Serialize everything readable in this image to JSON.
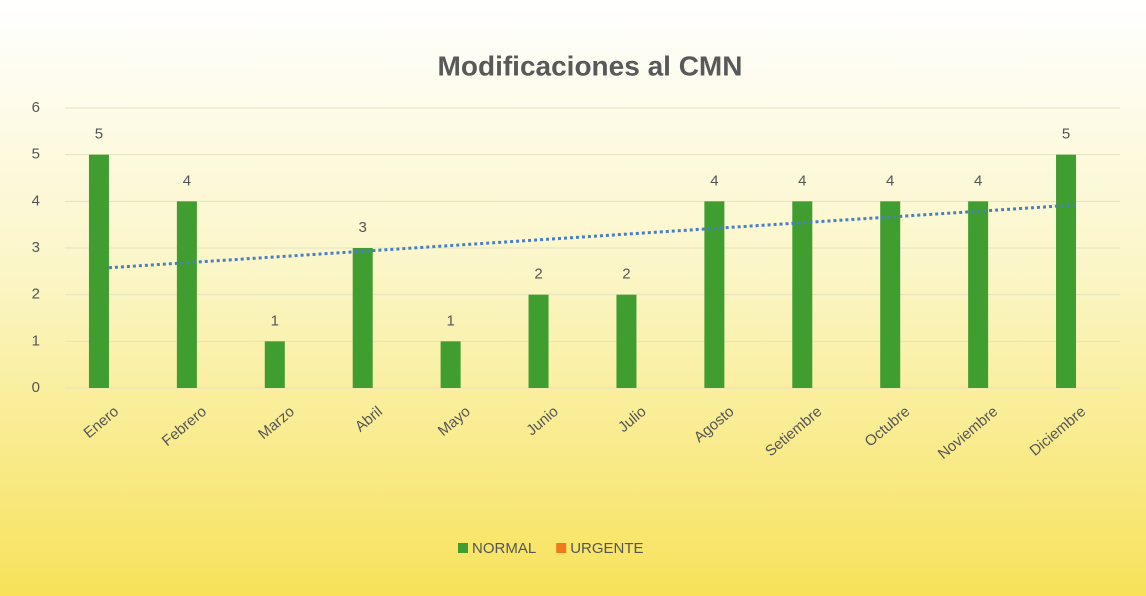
{
  "chart_data": {
    "type": "bar",
    "title": "Modificaciones al CMN",
    "categories": [
      "Enero",
      "Febrero",
      "Marzo",
      "Abril",
      "Mayo",
      "Junio",
      "Julio",
      "Agosto",
      "Setiembre",
      "Octubre",
      "Noviembre",
      "Diciembre"
    ],
    "series": [
      {
        "name": "NORMAL",
        "color": "#3f9e2f",
        "values": [
          5,
          4,
          1,
          3,
          1,
          2,
          2,
          4,
          4,
          4,
          4,
          5
        ]
      },
      {
        "name": "URGENTE",
        "color": "#f07a1a",
        "values": [
          0,
          0,
          0,
          0,
          0,
          0,
          0,
          0,
          0,
          0,
          0,
          0
        ]
      }
    ],
    "ylim": [
      0,
      6
    ],
    "yticks": [
      0,
      1,
      2,
      3,
      4,
      5,
      6
    ],
    "grid": true,
    "trendline": true,
    "trendline_color": "#4a7fc1",
    "legend": "bottom"
  }
}
